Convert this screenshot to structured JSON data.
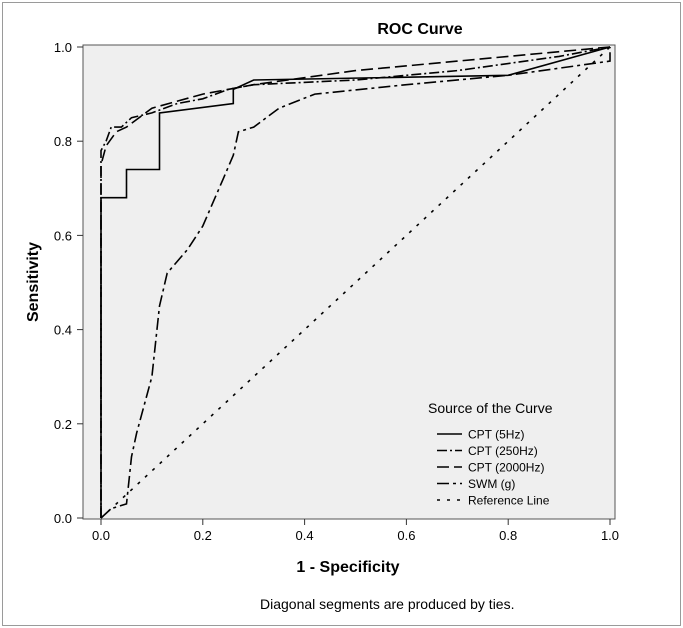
{
  "chart_data": {
    "type": "line",
    "title": "ROC Curve",
    "xlabel": "1 - Specificity",
    "ylabel": "Sensitivity",
    "xlim": [
      0,
      1
    ],
    "ylim": [
      0,
      1
    ],
    "xticks": [
      "0.0",
      "0.2",
      "0.4",
      "0.6",
      "0.8",
      "1.0"
    ],
    "yticks": [
      "0.0",
      "0.2",
      "0.4",
      "0.6",
      "0.8",
      "1.0"
    ],
    "grid": false,
    "legend_title": "Source of the Curve",
    "legend_position": "bottom-right",
    "footnote": "Diagonal segments are produced by ties.",
    "colors": {
      "plot_bg": "#efefef",
      "line": "#000000"
    },
    "series": [
      {
        "name": "CPT (5Hz)",
        "dash": "solid",
        "x": [
          0,
          0,
          0.05,
          0.05,
          0.115,
          0.115,
          0.26,
          0.26,
          0.3,
          0.8,
          1.0
        ],
        "y": [
          0,
          0.68,
          0.68,
          0.74,
          0.74,
          0.86,
          0.88,
          0.91,
          0.93,
          0.94,
          1.0
        ]
      },
      {
        "name": "CPT (250Hz)",
        "dash": "dash-dot",
        "x": [
          0,
          0,
          0.01,
          0.02,
          0.04,
          0.06,
          0.1,
          0.15,
          0.2,
          0.25,
          0.3,
          0.5,
          0.7,
          0.9,
          1.0
        ],
        "y": [
          0,
          0.78,
          0.8,
          0.83,
          0.83,
          0.85,
          0.86,
          0.88,
          0.89,
          0.91,
          0.92,
          0.93,
          0.95,
          0.98,
          1.0
        ]
      },
      {
        "name": "CPT (2000Hz)",
        "dash": "long-dash",
        "x": [
          0,
          0,
          0.01,
          0.03,
          0.05,
          0.1,
          0.2,
          0.3,
          0.5,
          0.8,
          1.0
        ],
        "y": [
          0,
          0.75,
          0.79,
          0.82,
          0.83,
          0.87,
          0.9,
          0.92,
          0.95,
          0.98,
          1.0
        ]
      },
      {
        "name": "SWM (g)",
        "dash": "long-dash-dot",
        "x": [
          0,
          0.02,
          0.05,
          0.06,
          0.07,
          0.1,
          0.115,
          0.13,
          0.17,
          0.2,
          0.24,
          0.26,
          0.27,
          0.3,
          0.35,
          0.42,
          0.6,
          0.8,
          1.0,
          1.0
        ],
        "y": [
          0,
          0.02,
          0.03,
          0.13,
          0.18,
          0.3,
          0.45,
          0.52,
          0.57,
          0.62,
          0.72,
          0.77,
          0.82,
          0.83,
          0.87,
          0.9,
          0.92,
          0.94,
          0.97,
          1.0
        ]
      },
      {
        "name": "Reference Line",
        "dash": "dotted",
        "x": [
          0,
          1
        ],
        "y": [
          0,
          1
        ]
      }
    ]
  }
}
